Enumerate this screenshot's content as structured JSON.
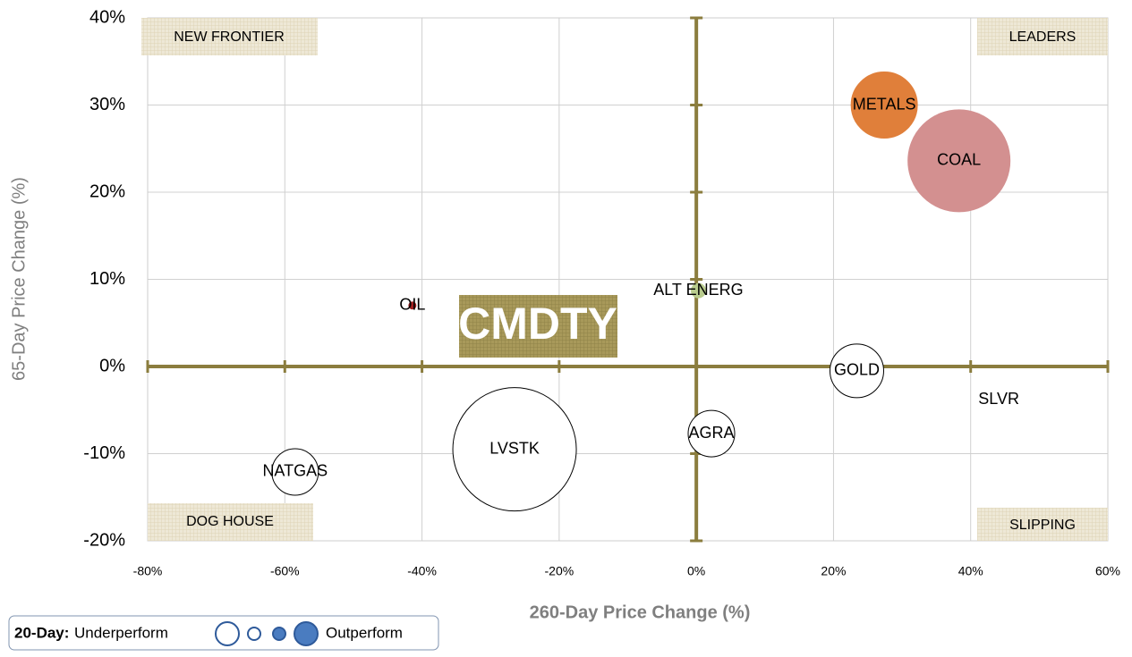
{
  "chart_data": {
    "type": "bubble",
    "x_label": "260-Day Price Change (%)",
    "y_label": "65-Day Price Change (%)",
    "labels": [
      "METALS",
      "COAL",
      "ALT ENERG",
      "OIL",
      "GOLD",
      "SLVR",
      "AGRA",
      "LVSTK",
      "NATGAS"
    ],
    "x": [
      27.4,
      38.3,
      0.3,
      -41.4,
      23.4,
      44.1,
      2.2,
      -26.5,
      -58.5
    ],
    "y": [
      30,
      23.6,
      8.7,
      7.0,
      -0.5,
      -3.8,
      -7.7,
      -9.5,
      -12.1
    ],
    "sizes": [
      37,
      57,
      8,
      4,
      30,
      0,
      26,
      69,
      26
    ],
    "colors": [
      "#e07f3a",
      "#d39090",
      "#b9cc8e",
      "#a02020",
      "#ffffff",
      "#ffffff",
      "#ffffff",
      "#ffffff",
      "#ffffff"
    ],
    "xlim": [
      -80,
      60
    ],
    "ylim": [
      -20,
      40
    ],
    "xticks": [
      {
        "value": -80,
        "label": "-80%"
      },
      {
        "value": -60,
        "label": "-60%"
      },
      {
        "value": -40,
        "label": "-40%"
      },
      {
        "value": -20,
        "label": "-20%"
      },
      {
        "value": 0,
        "label": "0%"
      },
      {
        "value": 20,
        "label": "20%"
      },
      {
        "value": 40,
        "label": "40%"
      },
      {
        "value": 60,
        "label": "60%"
      }
    ],
    "yticks": [
      {
        "value": -20,
        "label": "-20%"
      },
      {
        "value": -10,
        "label": "-10%"
      },
      {
        "value": 0,
        "label": "0%"
      },
      {
        "value": 10,
        "label": "10%"
      },
      {
        "value": 20,
        "label": "20%"
      },
      {
        "value": 30,
        "label": "30%"
      },
      {
        "value": 40,
        "label": "40%"
      }
    ],
    "grid": true,
    "quadrants": [
      "NEW FRONTIER",
      "LEADERS",
      "DOG HOUSE",
      "SLIPPING"
    ],
    "badge": "CMDTY",
    "legend": {
      "title": "20-Day:",
      "low": "Underperform",
      "high": "Outperform"
    }
  }
}
